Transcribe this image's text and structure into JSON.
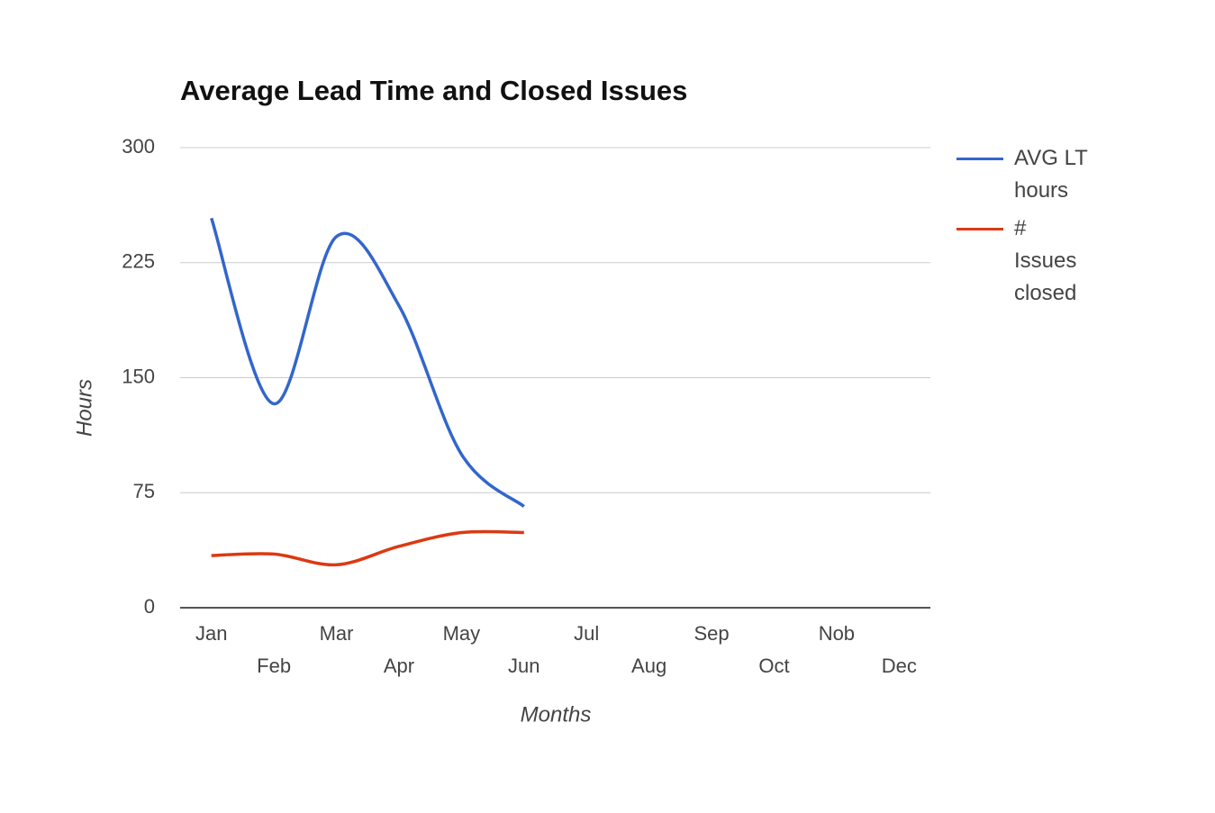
{
  "chart_data": {
    "type": "line",
    "title": "Average Lead Time and Closed Issues",
    "x_label": "Months",
    "y_label": "Hours",
    "categories": [
      "Jan",
      "Feb",
      "Mar",
      "Apr",
      "May",
      "Jun",
      "Jul",
      "Aug",
      "Sep",
      "Oct",
      "Nob",
      "Dec"
    ],
    "series": [
      {
        "name": "AVG LT hours",
        "color": "#3366cc",
        "values": [
          254,
          133,
          242,
          197,
          100,
          66,
          null,
          null,
          null,
          null,
          null,
          null
        ]
      },
      {
        "name": "# Issues closed",
        "color": "#dc3912",
        "values": [
          34,
          35,
          28,
          40,
          49,
          49,
          null,
          null,
          null,
          null,
          null,
          null
        ]
      }
    ],
    "ylim": [
      0,
      300
    ],
    "yticks": [
      0,
      75,
      150,
      225,
      300
    ],
    "grid": true,
    "legend": "right"
  }
}
